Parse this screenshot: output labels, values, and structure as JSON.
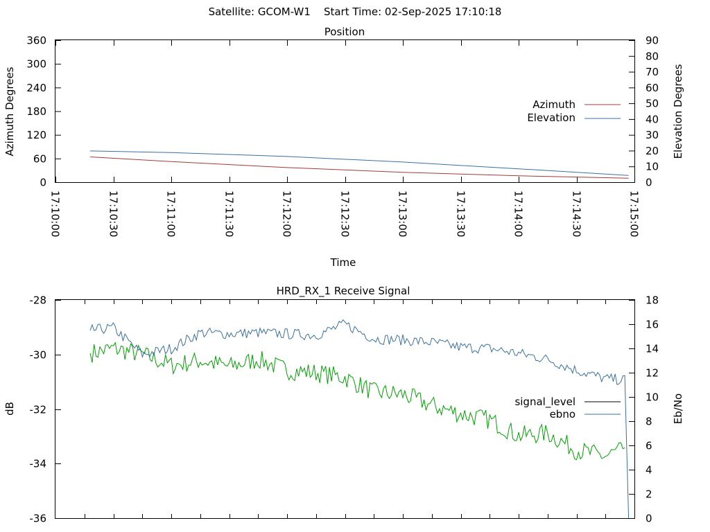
{
  "header": {
    "satellite_label": "Satellite:",
    "satellite": "GCOM-W1",
    "start_label": "Start Time:",
    "start_time": "02-Sep-2025 17:10:18"
  },
  "chart_data": [
    {
      "id": "position",
      "type": "line",
      "title": "Position",
      "xlabel": "Time",
      "ylabel": "Azimuth Degrees",
      "y2label": "Elevation Degrees",
      "xlim": [
        "17:10:00",
        "17:15:00"
      ],
      "x_ticks": [
        "17:10:00",
        "17:10:30",
        "17:11:00",
        "17:11:30",
        "17:12:00",
        "17:12:30",
        "17:13:00",
        "17:13:30",
        "17:14:00",
        "17:14:30",
        "17:15:00"
      ],
      "ylim": [
        0,
        360
      ],
      "y_ticks": [
        0,
        60,
        120,
        180,
        240,
        300,
        360
      ],
      "y2lim": [
        0,
        90
      ],
      "y2_ticks": [
        0,
        10,
        20,
        30,
        40,
        50,
        60,
        70,
        80,
        90
      ],
      "legend_position": "right",
      "series": [
        {
          "name": "Azimuth",
          "axis": "y",
          "color": "#a03a3a",
          "x": [
            "17:10:18",
            "17:11:00",
            "17:12:00",
            "17:13:00",
            "17:14:00",
            "17:14:57"
          ],
          "y": [
            65,
            53,
            38,
            26,
            17,
            11
          ]
        },
        {
          "name": "Elevation",
          "axis": "y2",
          "color": "#3a6fa0",
          "x": [
            "17:10:18",
            "17:11:00",
            "17:12:00",
            "17:13:00",
            "17:14:00",
            "17:14:57"
          ],
          "y": [
            20,
            19,
            16.5,
            13,
            8.7,
            4.5
          ]
        }
      ]
    },
    {
      "id": "receive-signal",
      "type": "line",
      "title": "HRD_RX_1 Receive Signal",
      "ylabel": "dB",
      "y2label": "Eb/No",
      "xlim": [
        "17:10:00",
        "17:15:00"
      ],
      "ylim": [
        -36,
        -28
      ],
      "y_ticks": [
        -36,
        -34,
        -32,
        -30,
        -28
      ],
      "y2lim": [
        0,
        18
      ],
      "y2_ticks": [
        0,
        2,
        4,
        6,
        8,
        10,
        12,
        14,
        16,
        18
      ],
      "legend_position": "right",
      "series": [
        {
          "name": "signal_level",
          "axis": "y",
          "color": "#000000",
          "x": [],
          "y": []
        },
        {
          "name": "ebno",
          "axis": "y2",
          "color": "#3a6fa0",
          "x": [
            "17:10:18",
            "17:10:30",
            "17:10:45",
            "17:11:00",
            "17:11:15",
            "17:11:30",
            "17:11:45",
            "17:12:00",
            "17:12:15",
            "17:12:30",
            "17:12:45",
            "17:13:00",
            "17:13:15",
            "17:13:30",
            "17:13:45",
            "17:14:00",
            "17:14:15",
            "17:14:30",
            "17:14:45",
            "17:14:55",
            "17:14:57"
          ],
          "y": [
            15.5,
            15.7,
            13.5,
            14.0,
            15.3,
            15.2,
            15.3,
            15.2,
            15.1,
            16.0,
            14.8,
            14.7,
            14.5,
            14.1,
            14.0,
            13.6,
            13.1,
            12.2,
            11.5,
            11.4,
            0
          ]
        },
        {
          "name": "",
          "axis": "y2",
          "color": "#00a000",
          "x": [
            "17:10:18",
            "17:10:30",
            "17:10:45",
            "17:11:00",
            "17:11:15",
            "17:11:30",
            "17:11:45",
            "17:12:00",
            "17:12:15",
            "17:12:30",
            "17:12:45",
            "17:13:00",
            "17:13:15",
            "17:13:30",
            "17:13:45",
            "17:14:00",
            "17:14:15",
            "17:14:30",
            "17:14:45",
            "17:14:55"
          ],
          "y": [
            13.6,
            14.0,
            13.5,
            12.6,
            13.0,
            12.5,
            13.1,
            12.2,
            12.0,
            11.6,
            10.4,
            10.2,
            9.3,
            8.6,
            8.1,
            6.8,
            7.0,
            5.6,
            5.1,
            5.8
          ]
        }
      ]
    }
  ]
}
